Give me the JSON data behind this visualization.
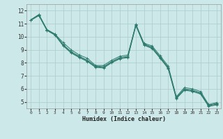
{
  "title": "",
  "xlabel": "Humidex (Indice chaleur)",
  "xlim": [
    -0.5,
    23.5
  ],
  "ylim": [
    4.5,
    12.5
  ],
  "yticks": [
    5,
    6,
    7,
    8,
    9,
    10,
    11,
    12
  ],
  "xticks": [
    0,
    1,
    2,
    3,
    4,
    5,
    6,
    7,
    8,
    9,
    10,
    11,
    12,
    13,
    14,
    15,
    16,
    17,
    18,
    19,
    20,
    21,
    22,
    23
  ],
  "bg_color": "#cce8e8",
  "grid_color": "#aacccc",
  "line_color": "#2e7b6e",
  "series": [
    [
      11.3,
      11.7,
      10.55,
      10.2,
      9.55,
      9.0,
      8.6,
      8.35,
      7.8,
      7.8,
      8.2,
      8.5,
      8.6,
      10.95,
      9.5,
      9.3,
      8.55,
      7.75,
      5.4,
      6.1,
      6.0,
      5.8,
      4.8,
      4.95
    ],
    [
      11.3,
      11.7,
      10.55,
      10.2,
      9.4,
      8.85,
      8.5,
      8.2,
      7.75,
      7.7,
      8.1,
      8.4,
      8.5,
      10.95,
      9.45,
      9.2,
      8.45,
      7.65,
      5.35,
      6.0,
      5.9,
      5.7,
      4.75,
      4.88
    ],
    [
      11.3,
      11.65,
      10.5,
      10.15,
      9.35,
      8.8,
      8.45,
      8.15,
      7.7,
      7.65,
      8.05,
      8.35,
      8.45,
      10.9,
      9.4,
      9.15,
      8.4,
      7.6,
      5.3,
      5.95,
      5.85,
      5.65,
      4.7,
      4.82
    ],
    [
      11.25,
      11.62,
      10.48,
      10.12,
      9.3,
      8.75,
      8.4,
      8.1,
      7.65,
      7.6,
      8.0,
      8.3,
      8.4,
      10.85,
      9.35,
      9.1,
      8.35,
      7.55,
      5.25,
      5.9,
      5.8,
      5.6,
      4.65,
      4.78
    ]
  ]
}
